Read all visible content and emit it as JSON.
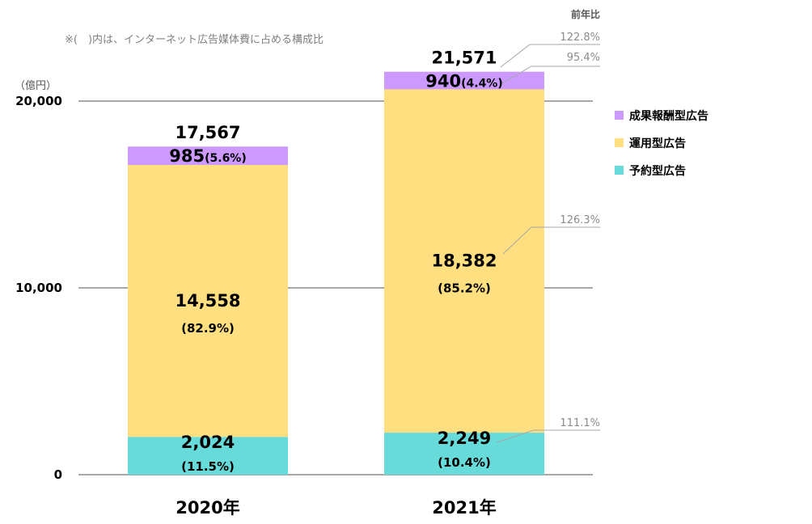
{
  "note": "※(　)内は、インターネット広告媒体費に占める構成比",
  "yoy_header": "前年比",
  "chart_data": {
    "type": "bar",
    "stacked": true,
    "unit_label": "（億円）",
    "categories": [
      "2020年",
      "2021年"
    ],
    "ylim": [
      0,
      22000
    ],
    "yticks": [
      {
        "value": 0,
        "label": "0"
      },
      {
        "value": 10000,
        "label": "10,000"
      },
      {
        "value": 20000,
        "label": "20,000"
      }
    ],
    "grid": true,
    "legend_position": "right",
    "series": [
      {
        "name": "予約型広告",
        "color": "#66dbd9",
        "values": [
          2024,
          2249
        ],
        "value_labels": [
          "2,024",
          "2,249"
        ],
        "share_labels": [
          "(11.5%)",
          "(10.4%)"
        ],
        "yoy": "111.1%"
      },
      {
        "name": "運用型広告",
        "color": "#ffdf80",
        "values": [
          14558,
          18382
        ],
        "value_labels": [
          "14,558",
          "18,382"
        ],
        "share_labels": [
          "(82.9%)",
          "(85.2%)"
        ],
        "yoy": "126.3%"
      },
      {
        "name": "成果報酬型広告",
        "color": "#cc99ff",
        "values": [
          985,
          940
        ],
        "value_labels": [
          "985",
          "940"
        ],
        "share_labels": [
          "(5.6%)",
          "(4.4%)"
        ],
        "yoy": "95.4%"
      }
    ],
    "totals": [
      17567,
      21571
    ],
    "total_labels": [
      "17,567",
      "21,571"
    ],
    "total_yoy": "122.8%"
  }
}
